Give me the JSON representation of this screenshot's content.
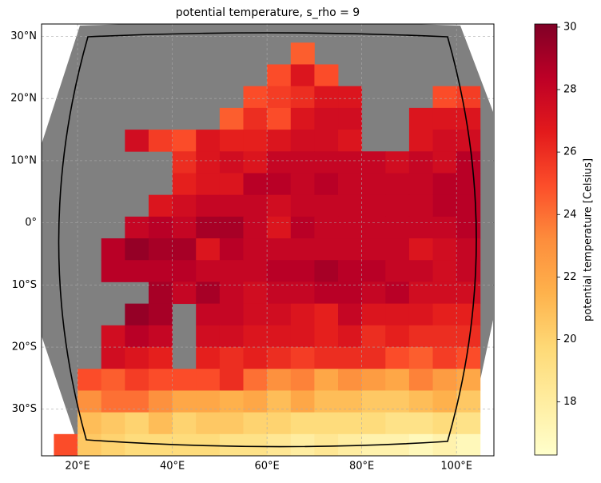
{
  "chart_data": {
    "type": "heatmap",
    "title": "potential temperature, s_rho = 9",
    "colorbar_label": "potential temperature [Celsius]",
    "colormap": "YlOrRd",
    "land_color": "#808080",
    "grid": true,
    "clim": [
      16.3,
      30.1
    ],
    "cbar_ticks": [
      18,
      20,
      22,
      24,
      26,
      28,
      30
    ],
    "xlim": [
      12.4,
      107.9
    ],
    "ylim": [
      -37.5,
      32
    ],
    "xticks": [
      {
        "value": 20,
        "label": "20°E"
      },
      {
        "value": 40,
        "label": "40°E"
      },
      {
        "value": 60,
        "label": "60°E"
      },
      {
        "value": 80,
        "label": "80°E"
      },
      {
        "value": 100,
        "label": "100°E"
      }
    ],
    "yticks": [
      {
        "value": 30,
        "label": "30°N"
      },
      {
        "value": 20,
        "label": "20°N"
      },
      {
        "value": 10,
        "label": "10°N"
      },
      {
        "value": 0,
        "label": "0°"
      },
      {
        "value": -10,
        "label": "10°S"
      },
      {
        "value": -20,
        "label": "20°S"
      },
      {
        "value": -30,
        "label": "30°S"
      }
    ],
    "x": [
      17.5,
      22.5,
      27.5,
      32.5,
      37.5,
      42.5,
      47.5,
      52.5,
      57.5,
      62.5,
      67.5,
      72.5,
      77.5,
      82.5,
      87.5,
      92.5,
      97.5,
      102.5,
      107.5
    ],
    "y": [
      30.75,
      27.25,
      23.75,
      20.25,
      16.75,
      13.25,
      9.75,
      6.25,
      2.75,
      -0.75,
      -4.25,
      -7.75,
      -11.25,
      -14.75,
      -18.25,
      -21.75,
      -25.25,
      -28.75,
      -32.25,
      -35.75
    ],
    "values": [
      [
        null,
        null,
        null,
        null,
        null,
        null,
        null,
        null,
        null,
        null,
        null,
        null,
        null,
        null,
        null,
        null,
        null,
        null,
        null
      ],
      [
        null,
        null,
        null,
        null,
        null,
        null,
        null,
        null,
        null,
        null,
        24.5,
        null,
        null,
        null,
        null,
        null,
        null,
        null,
        null
      ],
      [
        null,
        null,
        null,
        null,
        null,
        null,
        null,
        null,
        null,
        25,
        27,
        25,
        null,
        null,
        null,
        null,
        null,
        null,
        null
      ],
      [
        null,
        null,
        null,
        null,
        null,
        null,
        null,
        null,
        25,
        25.5,
        26,
        27,
        27,
        null,
        null,
        null,
        25,
        25.5,
        null
      ],
      [
        null,
        null,
        null,
        null,
        null,
        null,
        null,
        24.5,
        26,
        25,
        27,
        27.5,
        27.5,
        null,
        null,
        27,
        27,
        27,
        null
      ],
      [
        null,
        null,
        null,
        27.5,
        25.5,
        25,
        27,
        26.5,
        26.5,
        27,
        27.5,
        27.5,
        27,
        null,
        null,
        27,
        27.5,
        27.5,
        null
      ],
      [
        null,
        null,
        null,
        null,
        null,
        26,
        27,
        27.5,
        27,
        28,
        28,
        28,
        28,
        28,
        27.5,
        28,
        27.5,
        28.5,
        null
      ],
      [
        null,
        null,
        null,
        null,
        null,
        26.5,
        27,
        27,
        28.5,
        28.5,
        28,
        28.5,
        28,
        28,
        28,
        28,
        28.5,
        28.5,
        null
      ],
      [
        null,
        null,
        null,
        null,
        27,
        27.5,
        28,
        28,
        28,
        27.5,
        28,
        28,
        28,
        28,
        28,
        28,
        28.5,
        28.5,
        null
      ],
      [
        null,
        null,
        null,
        28,
        28.5,
        28,
        29,
        29,
        28,
        27,
        28.5,
        28,
        28,
        28,
        28,
        28,
        28,
        28.5,
        null
      ],
      [
        null,
        null,
        28.5,
        29.5,
        29,
        29,
        27,
        28.5,
        28,
        28,
        28,
        28,
        28,
        28,
        28,
        27,
        27.5,
        28,
        null
      ],
      [
        null,
        null,
        28.5,
        28.5,
        28.5,
        28.5,
        28,
        28,
        28,
        28.5,
        28.5,
        29,
        28.5,
        28.5,
        28,
        28,
        27.5,
        28,
        null
      ],
      [
        null,
        null,
        null,
        null,
        29,
        28,
        29,
        28,
        27.5,
        28,
        28,
        28.5,
        28.5,
        28,
        28.5,
        27.5,
        27.5,
        27.5,
        null
      ],
      [
        null,
        null,
        null,
        29.5,
        29,
        null,
        28,
        28,
        27.5,
        27.5,
        27,
        26.5,
        28,
        27,
        27,
        27,
        26.5,
        26.5,
        null
      ],
      [
        null,
        null,
        27.5,
        28.5,
        28,
        null,
        27.5,
        27.5,
        27,
        27,
        27,
        26.5,
        27,
        26,
        26.5,
        26,
        26,
        26,
        null
      ],
      [
        null,
        null,
        27.5,
        27,
        26.5,
        null,
        26.5,
        26,
        26.5,
        26,
        25.5,
        26,
        26,
        26,
        25,
        24.5,
        25.5,
        25,
        null
      ],
      [
        null,
        25,
        24.5,
        25.5,
        25,
        25,
        25,
        26,
        24,
        23,
        23.5,
        22,
        23,
        22.5,
        22,
        23.5,
        22.5,
        22,
        null
      ],
      [
        null,
        23,
        24,
        24,
        23,
        22,
        22,
        21.5,
        22,
        21,
        22,
        21,
        21,
        20.5,
        20.5,
        21,
        21.5,
        20.5,
        null
      ],
      [
        null,
        21,
        20.5,
        20,
        21,
        20,
        20.5,
        20.5,
        20,
        20,
        19.5,
        19.5,
        19.5,
        19.5,
        19,
        19,
        19.5,
        19,
        null
      ],
      [
        25,
        20.5,
        20,
        19.5,
        19.5,
        19.5,
        19.5,
        19,
        19,
        18.5,
        18,
        18.5,
        18,
        17.5,
        17.5,
        17,
        17.5,
        17,
        null
      ]
    ]
  }
}
